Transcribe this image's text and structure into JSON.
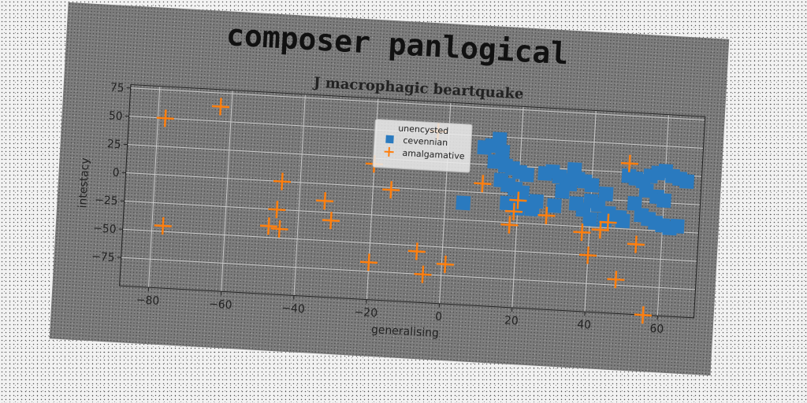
{
  "figure_title": "composer panlogical",
  "chart_data": {
    "type": "scatter",
    "title": "J macrophagic beartquake",
    "xlabel": "generalising",
    "ylabel": "intestacy",
    "xlim": [
      -88,
      70
    ],
    "ylim": [
      -100,
      78
    ],
    "xticks": [
      -80,
      -60,
      -40,
      -20,
      0,
      20,
      40,
      60
    ],
    "yticks": [
      75,
      50,
      25,
      0,
      -25,
      -50,
      -75
    ],
    "tick_labels_x": [
      "−80",
      "−60",
      "−40",
      "−20",
      "0",
      "20",
      "40",
      "60"
    ],
    "tick_labels_y": [
      "75",
      "50",
      "25",
      "0",
      "−25",
      "−50",
      "−75"
    ],
    "grid": true,
    "legend": {
      "title": "unencysted",
      "placement": "upper-center"
    },
    "series": [
      {
        "name": "cevennian",
        "marker": "square",
        "color": "#2a7abf",
        "points": [
          [
            5,
            -10
          ],
          [
            10,
            40
          ],
          [
            12,
            42
          ],
          [
            14,
            48
          ],
          [
            15,
            37
          ],
          [
            13,
            28
          ],
          [
            16,
            25
          ],
          [
            18,
            23
          ],
          [
            20,
            20
          ],
          [
            15,
            12
          ],
          [
            17,
            8
          ],
          [
            19,
            5
          ],
          [
            22,
            18
          ],
          [
            21,
            2
          ],
          [
            17,
            -8
          ],
          [
            20,
            -12
          ],
          [
            23,
            -8
          ],
          [
            25,
            -5
          ],
          [
            27,
            20
          ],
          [
            29,
            22
          ],
          [
            31,
            18
          ],
          [
            33,
            15
          ],
          [
            35,
            25
          ],
          [
            34,
            12
          ],
          [
            36,
            17
          ],
          [
            38,
            15
          ],
          [
            40,
            12
          ],
          [
            32,
            5
          ],
          [
            36,
            -5
          ],
          [
            38,
            -10
          ],
          [
            40,
            -2
          ],
          [
            42,
            -5
          ],
          [
            44,
            5
          ],
          [
            45,
            -12
          ],
          [
            47,
            -15
          ],
          [
            49,
            -18
          ],
          [
            50,
            22
          ],
          [
            52,
            20
          ],
          [
            54,
            18
          ],
          [
            56,
            23
          ],
          [
            58,
            26
          ],
          [
            60,
            28
          ],
          [
            62,
            24
          ],
          [
            64,
            22
          ],
          [
            66,
            20
          ],
          [
            55,
            10
          ],
          [
            58,
            5
          ],
          [
            60,
            2
          ],
          [
            52,
            -2
          ],
          [
            54,
            -12
          ],
          [
            56,
            -15
          ],
          [
            58,
            -18
          ],
          [
            60,
            -20
          ],
          [
            62,
            -22
          ],
          [
            64,
            -20
          ],
          [
            30,
            -8
          ],
          [
            24,
            -12
          ],
          [
            40,
            -18
          ],
          [
            44,
            -18
          ],
          [
            48,
            -15
          ]
        ]
      },
      {
        "name": "amalgamative",
        "marker": "plus",
        "color": "#ff7f0e",
        "points": [
          [
            -78,
            50
          ],
          [
            -63,
            63
          ],
          [
            -77,
            -45
          ],
          [
            -45,
            0
          ],
          [
            -46,
            -25
          ],
          [
            -48,
            -40
          ],
          [
            -45,
            -42
          ],
          [
            -33,
            -15
          ],
          [
            -31,
            -32
          ],
          [
            -20,
            20
          ],
          [
            -15,
            -2
          ],
          [
            -20,
            -67
          ],
          [
            -7,
            -55
          ],
          [
            -5,
            -75
          ],
          [
            -3,
            52
          ],
          [
            1,
            -65
          ],
          [
            10,
            8
          ],
          [
            18,
            -27
          ],
          [
            19,
            -15
          ],
          [
            20,
            -5
          ],
          [
            28,
            -17
          ],
          [
            38,
            -30
          ],
          [
            40,
            -50
          ],
          [
            43,
            -27
          ],
          [
            45,
            -20
          ],
          [
            48,
            -70
          ],
          [
            50,
            33
          ],
          [
            53,
            -38
          ],
          [
            56,
            -100
          ]
        ]
      }
    ]
  }
}
